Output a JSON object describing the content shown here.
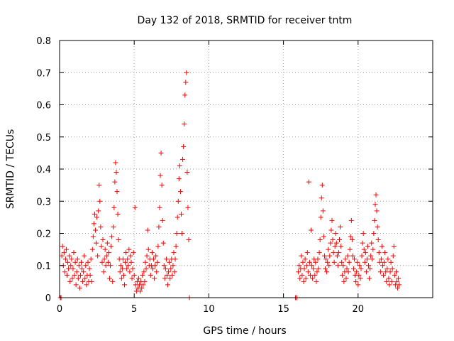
{
  "chart_data": {
    "type": "scatter",
    "title": "Day 132 of 2018, SRMTID for receiver tntm",
    "xlabel": "GPS time / hours",
    "ylabel": "SRMTID / TECUs",
    "xlim": [
      0,
      25
    ],
    "ylim": [
      0,
      0.8
    ],
    "grid": true,
    "marker": "+",
    "x_ticks": [
      0,
      5,
      10,
      15,
      20
    ],
    "x_tick_labels": [
      "0",
      "5",
      "10",
      "15",
      "20"
    ],
    "y_ticks": [
      0,
      0.1,
      0.2,
      0.3,
      0.4,
      0.5,
      0.6,
      0.7,
      0.8
    ],
    "y_tick_labels": [
      "0",
      "0.1",
      "0.2",
      "0.3",
      "0.4",
      "0.5",
      "0.6",
      "0.7",
      "0.8"
    ],
    "series": [
      {
        "name": "SRMTID",
        "color": "#ff0000",
        "points": [
          [
            0.05,
            0.0
          ],
          [
            0.1,
            0.0
          ],
          [
            0.15,
            0.13
          ],
          [
            0.2,
            0.16
          ],
          [
            0.25,
            0.1
          ],
          [
            0.3,
            0.14
          ],
          [
            0.35,
            0.08
          ],
          [
            0.4,
            0.12
          ],
          [
            0.45,
            0.15
          ],
          [
            0.5,
            0.07
          ],
          [
            0.55,
            0.11
          ],
          [
            0.6,
            0.09
          ],
          [
            0.65,
            0.13
          ],
          [
            0.7,
            0.05
          ],
          [
            0.75,
            0.1
          ],
          [
            0.8,
            0.12
          ],
          [
            0.85,
            0.06
          ],
          [
            0.9,
            0.09
          ],
          [
            0.95,
            0.14
          ],
          [
            1.0,
            0.07
          ],
          [
            1.05,
            0.11
          ],
          [
            1.1,
            0.04
          ],
          [
            1.15,
            0.08
          ],
          [
            1.2,
            0.12
          ],
          [
            1.25,
            0.06
          ],
          [
            1.3,
            0.1
          ],
          [
            1.35,
            0.03
          ],
          [
            1.4,
            0.07
          ],
          [
            1.45,
            0.11
          ],
          [
            1.5,
            0.09
          ],
          [
            1.55,
            0.05
          ],
          [
            1.6,
            0.08
          ],
          [
            1.65,
            0.13
          ],
          [
            1.7,
            0.06
          ],
          [
            1.75,
            0.1
          ],
          [
            1.8,
            0.04
          ],
          [
            1.85,
            0.07
          ],
          [
            1.9,
            0.11
          ],
          [
            1.95,
            0.05
          ],
          [
            2.0,
            0.09
          ],
          [
            2.05,
            0.07
          ],
          [
            2.1,
            0.12
          ],
          [
            2.15,
            0.05
          ],
          [
            2.2,
            0.15
          ],
          [
            2.25,
            0.19
          ],
          [
            2.3,
            0.23
          ],
          [
            2.35,
            0.26
          ],
          [
            2.4,
            0.21
          ],
          [
            2.45,
            0.17
          ],
          [
            2.5,
            0.25
          ],
          [
            2.55,
            0.13
          ],
          [
            2.6,
            0.27
          ],
          [
            2.65,
            0.35
          ],
          [
            2.7,
            0.3
          ],
          [
            2.75,
            0.22
          ],
          [
            2.8,
            0.16
          ],
          [
            2.85,
            0.11
          ],
          [
            2.9,
            0.18
          ],
          [
            2.95,
            0.08
          ],
          [
            3.0,
            0.12
          ],
          [
            3.05,
            0.15
          ],
          [
            3.1,
            0.1
          ],
          [
            3.15,
            0.13
          ],
          [
            3.2,
            0.17
          ],
          [
            3.25,
            0.11
          ],
          [
            3.3,
            0.14
          ],
          [
            3.35,
            0.06
          ],
          [
            3.4,
            0.1
          ],
          [
            3.45,
            0.16
          ],
          [
            3.5,
            0.19
          ],
          [
            3.55,
            0.05
          ],
          [
            3.6,
            0.22
          ],
          [
            3.65,
            0.28
          ],
          [
            3.7,
            0.36
          ],
          [
            3.75,
            0.42
          ],
          [
            3.8,
            0.39
          ],
          [
            3.85,
            0.33
          ],
          [
            3.9,
            0.26
          ],
          [
            3.95,
            0.18
          ],
          [
            4.0,
            0.12
          ],
          [
            4.05,
            0.08
          ],
          [
            4.1,
            0.1
          ],
          [
            4.15,
            0.06
          ],
          [
            4.2,
            0.09
          ],
          [
            4.25,
            0.12
          ],
          [
            4.3,
            0.07
          ],
          [
            4.35,
            0.04
          ],
          [
            4.4,
            0.11
          ],
          [
            4.45,
            0.14
          ],
          [
            4.5,
            0.09
          ],
          [
            4.55,
            0.12
          ],
          [
            4.6,
            0.1
          ],
          [
            4.65,
            0.15
          ],
          [
            4.7,
            0.08
          ],
          [
            4.75,
            0.13
          ],
          [
            4.8,
            0.11
          ],
          [
            4.85,
            0.06
          ],
          [
            4.9,
            0.09
          ],
          [
            4.95,
            0.14
          ],
          [
            5.0,
            0.07
          ],
          [
            5.05,
            0.28
          ],
          [
            5.1,
            0.04
          ],
          [
            5.15,
            0.02
          ],
          [
            5.2,
            0.05
          ],
          [
            5.25,
            0.03
          ],
          [
            5.3,
            0.06
          ],
          [
            5.35,
            0.04
          ],
          [
            5.4,
            0.02
          ],
          [
            5.45,
            0.05
          ],
          [
            5.5,
            0.03
          ],
          [
            5.55,
            0.07
          ],
          [
            5.6,
            0.04
          ],
          [
            5.65,
            0.08
          ],
          [
            5.7,
            0.05
          ],
          [
            5.75,
            0.11
          ],
          [
            5.8,
            0.09
          ],
          [
            5.85,
            0.13
          ],
          [
            5.9,
            0.21
          ],
          [
            5.95,
            0.15
          ],
          [
            6.0,
            0.1
          ],
          [
            6.05,
            0.12
          ],
          [
            6.1,
            0.07
          ],
          [
            6.15,
            0.1
          ],
          [
            6.2,
            0.14
          ],
          [
            6.25,
            0.09
          ],
          [
            6.3,
            0.12
          ],
          [
            6.35,
            0.06
          ],
          [
            6.4,
            0.1
          ],
          [
            6.45,
            0.13
          ],
          [
            6.5,
            0.08
          ],
          [
            6.55,
            0.11
          ],
          [
            6.6,
            0.16
          ],
          [
            6.65,
            0.22
          ],
          [
            6.7,
            0.28
          ],
          [
            6.75,
            0.38
          ],
          [
            6.8,
            0.45
          ],
          [
            6.85,
            0.35
          ],
          [
            6.9,
            0.24
          ],
          [
            6.95,
            0.17
          ],
          [
            7.0,
            0.1
          ],
          [
            7.05,
            0.06
          ],
          [
            7.1,
            0.09
          ],
          [
            7.15,
            0.12
          ],
          [
            7.2,
            0.07
          ],
          [
            7.25,
            0.04
          ],
          [
            7.3,
            0.08
          ],
          [
            7.35,
            0.11
          ],
          [
            7.4,
            0.06
          ],
          [
            7.45,
            0.09
          ],
          [
            7.5,
            0.12
          ],
          [
            7.55,
            0.07
          ],
          [
            7.6,
            0.1
          ],
          [
            7.65,
            0.14
          ],
          [
            7.7,
            0.08
          ],
          [
            7.75,
            0.12
          ],
          [
            7.8,
            0.16
          ],
          [
            7.85,
            0.2
          ],
          [
            7.9,
            0.25
          ],
          [
            7.95,
            0.3
          ],
          [
            8.0,
            0.37
          ],
          [
            8.05,
            0.41
          ],
          [
            8.1,
            0.33
          ],
          [
            8.15,
            0.26
          ],
          [
            8.2,
            0.2
          ],
          [
            8.25,
            0.43
          ],
          [
            8.3,
            0.47
          ],
          [
            8.35,
            0.54
          ],
          [
            8.4,
            0.63
          ],
          [
            8.45,
            0.67
          ],
          [
            8.5,
            0.7
          ],
          [
            8.55,
            0.39
          ],
          [
            8.6,
            0.28
          ],
          [
            8.65,
            0.18
          ],
          [
            8.7,
            0.0
          ],
          [
            15.8,
            0.0
          ],
          [
            15.9,
            0.0
          ],
          [
            16.0,
            0.08
          ],
          [
            16.05,
            0.1
          ],
          [
            16.1,
            0.06
          ],
          [
            16.15,
            0.09
          ],
          [
            16.2,
            0.13
          ],
          [
            16.25,
            0.07
          ],
          [
            16.3,
            0.11
          ],
          [
            16.35,
            0.05
          ],
          [
            16.4,
            0.09
          ],
          [
            16.45,
            0.12
          ],
          [
            16.5,
            0.06
          ],
          [
            16.55,
            0.1
          ],
          [
            16.6,
            0.14
          ],
          [
            16.65,
            0.08
          ],
          [
            16.7,
            0.36
          ],
          [
            16.75,
            0.11
          ],
          [
            16.8,
            0.07
          ],
          [
            16.85,
            0.21
          ],
          [
            16.9,
            0.1
          ],
          [
            16.95,
            0.06
          ],
          [
            17.0,
            0.09
          ],
          [
            17.05,
            0.12
          ],
          [
            17.1,
            0.07
          ],
          [
            17.15,
            0.11
          ],
          [
            17.2,
            0.05
          ],
          [
            17.25,
            0.08
          ],
          [
            17.3,
            0.12
          ],
          [
            17.35,
            0.09
          ],
          [
            17.4,
            0.14
          ],
          [
            17.45,
            0.18
          ],
          [
            17.5,
            0.25
          ],
          [
            17.55,
            0.31
          ],
          [
            17.6,
            0.35
          ],
          [
            17.65,
            0.27
          ],
          [
            17.7,
            0.19
          ],
          [
            17.75,
            0.13
          ],
          [
            17.8,
            0.09
          ],
          [
            17.85,
            0.12
          ],
          [
            17.9,
            0.08
          ],
          [
            17.95,
            0.11
          ],
          [
            18.0,
            0.15
          ],
          [
            18.05,
            0.1
          ],
          [
            18.1,
            0.13
          ],
          [
            18.15,
            0.17
          ],
          [
            18.2,
            0.21
          ],
          [
            18.25,
            0.24
          ],
          [
            18.3,
            0.18
          ],
          [
            18.35,
            0.14
          ],
          [
            18.4,
            0.11
          ],
          [
            18.45,
            0.16
          ],
          [
            18.5,
            0.2
          ],
          [
            18.55,
            0.17
          ],
          [
            18.6,
            0.13
          ],
          [
            18.65,
            0.1
          ],
          [
            18.7,
            0.14
          ],
          [
            18.75,
            0.18
          ],
          [
            18.8,
            0.22
          ],
          [
            18.85,
            0.16
          ],
          [
            18.9,
            0.11
          ],
          [
            18.95,
            0.07
          ],
          [
            19.0,
            0.1
          ],
          [
            19.05,
            0.05
          ],
          [
            19.1,
            0.08
          ],
          [
            19.15,
            0.12
          ],
          [
            19.2,
            0.06
          ],
          [
            19.25,
            0.09
          ],
          [
            19.3,
            0.13
          ],
          [
            19.35,
            0.08
          ],
          [
            19.4,
            0.11
          ],
          [
            19.45,
            0.15
          ],
          [
            19.5,
            0.19
          ],
          [
            19.55,
            0.24
          ],
          [
            19.6,
            0.18
          ],
          [
            19.65,
            0.13
          ],
          [
            19.7,
            0.09
          ],
          [
            19.75,
            0.12
          ],
          [
            19.8,
            0.07
          ],
          [
            19.85,
            0.05
          ],
          [
            19.9,
            0.08
          ],
          [
            19.95,
            0.11
          ],
          [
            20.0,
            0.04
          ],
          [
            20.05,
            0.07
          ],
          [
            20.1,
            0.1
          ],
          [
            20.15,
            0.06
          ],
          [
            20.2,
            0.09
          ],
          [
            20.25,
            0.13
          ],
          [
            20.3,
            0.17
          ],
          [
            20.35,
            0.2
          ],
          [
            20.4,
            0.15
          ],
          [
            20.45,
            0.11
          ],
          [
            20.5,
            0.14
          ],
          [
            20.55,
            0.08
          ],
          [
            20.6,
            0.12
          ],
          [
            20.65,
            0.16
          ],
          [
            20.7,
            0.1
          ],
          [
            20.75,
            0.06
          ],
          [
            20.8,
            0.09
          ],
          [
            20.85,
            0.13
          ],
          [
            20.9,
            0.17
          ],
          [
            20.95,
            0.12
          ],
          [
            21.0,
            0.15
          ],
          [
            21.05,
            0.2
          ],
          [
            21.1,
            0.24
          ],
          [
            21.15,
            0.29
          ],
          [
            21.2,
            0.32
          ],
          [
            21.25,
            0.27
          ],
          [
            21.3,
            0.22
          ],
          [
            21.35,
            0.18
          ],
          [
            21.4,
            0.14
          ],
          [
            21.45,
            0.11
          ],
          [
            21.5,
            0.08
          ],
          [
            21.55,
            0.12
          ],
          [
            21.6,
            0.16
          ],
          [
            21.65,
            0.1
          ],
          [
            21.7,
            0.07
          ],
          [
            21.75,
            0.11
          ],
          [
            21.8,
            0.14
          ],
          [
            21.85,
            0.08
          ],
          [
            21.9,
            0.05
          ],
          [
            21.95,
            0.09
          ],
          [
            22.0,
            0.12
          ],
          [
            22.05,
            0.06
          ],
          [
            22.1,
            0.04
          ],
          [
            22.15,
            0.08
          ],
          [
            22.2,
            0.11
          ],
          [
            22.25,
            0.05
          ],
          [
            22.3,
            0.09
          ],
          [
            22.35,
            0.13
          ],
          [
            22.4,
            0.16
          ],
          [
            22.45,
            0.07
          ],
          [
            22.5,
            0.04
          ],
          [
            22.55,
            0.08
          ],
          [
            22.6,
            0.05
          ],
          [
            22.65,
            0.03
          ],
          [
            22.7,
            0.06
          ],
          [
            22.75,
            0.04
          ]
        ]
      }
    ]
  }
}
